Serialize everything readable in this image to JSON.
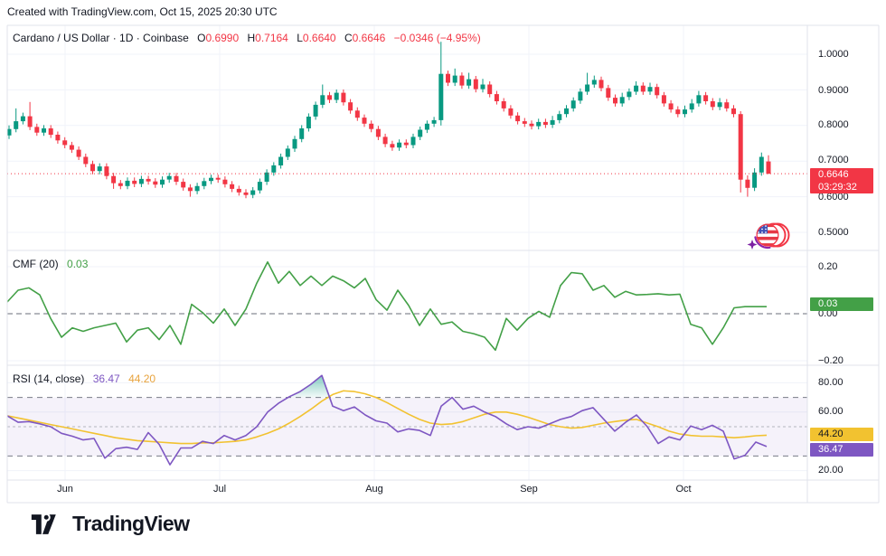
{
  "header": {
    "attribution": "Created with TradingView.com, Oct 15, 2025 20:30 UTC"
  },
  "symbol_legend": {
    "title": "Cardano / US Dollar · 1D · Coinbase",
    "o_label": "O",
    "o": "0.6990",
    "h_label": "H",
    "h": "0.7164",
    "l_label": "L",
    "l": "0.6640",
    "c_label": "C",
    "c": "0.6646",
    "change": "−0.0346 (−4.95%)"
  },
  "price_scale": {
    "ticks": [
      "1.0000",
      "0.9000",
      "0.8000",
      "0.7000",
      "0.6000",
      "0.5000"
    ],
    "badge": {
      "price": "0.6646",
      "countdown": "03:29:32"
    }
  },
  "cmf": {
    "title": "CMF (20)",
    "value": "0.03",
    "ticks": [
      "0.20",
      "0.00",
      "−0.20"
    ],
    "badge": "0.03"
  },
  "rsi": {
    "title": "RSI (14, close)",
    "rsi_value": "36.47",
    "ma_value": "44.20",
    "ticks": [
      "80.00",
      "60.00",
      "20.00"
    ],
    "rsi_badge": "36.47",
    "ma_badge": "44.20"
  },
  "time_axis": {
    "labels": [
      "Jun",
      "Jul",
      "Aug",
      "Sep",
      "Oct"
    ]
  },
  "footer": {
    "brand": "TradingView"
  },
  "colors": {
    "up": "#089981",
    "down": "#f23645",
    "cmf_line": "#43a047",
    "rsi_line": "#7e57c2",
    "rsi_ma_line": "#f2c230",
    "band_fill": "rgba(126,87,194,0.08)",
    "band_dash": "#787b86",
    "grid": "#f0f3fa",
    "frame": "#e0e3eb",
    "text": "#131722",
    "price_badge_bg": "#f23645",
    "cmf_badge_bg": "#43a047",
    "rsi_badge_bg": "#7e57c2",
    "ma_badge_bg": "#f2c230"
  },
  "chart_data": [
    {
      "type": "candlestick",
      "title": "Cardano / US Dollar",
      "timeframe": "1D",
      "exchange": "Coinbase",
      "ohlc_legend": {
        "o": 0.699,
        "h": 0.7164,
        "l": 0.664,
        "c": 0.6646,
        "change": -0.0346,
        "change_pct": -4.95
      },
      "y_ticks_values": [
        1.0,
        0.9,
        0.8,
        0.7,
        0.6,
        0.5
      ],
      "last_price": 0.6646,
      "x_labels": [
        "Jun",
        "Jul",
        "Aug",
        "Sep",
        "Oct"
      ],
      "candles": [
        [
          0.772,
          0.8,
          0.762,
          0.79
        ],
        [
          0.79,
          0.848,
          0.781,
          0.812
        ],
        [
          0.812,
          0.836,
          0.803,
          0.826
        ],
        [
          0.826,
          0.866,
          0.787,
          0.796
        ],
        [
          0.796,
          0.805,
          0.771,
          0.78
        ],
        [
          0.78,
          0.801,
          0.771,
          0.792
        ],
        [
          0.792,
          0.801,
          0.765,
          0.774
        ],
        [
          0.774,
          0.783,
          0.749,
          0.758
        ],
        [
          0.758,
          0.767,
          0.736,
          0.745
        ],
        [
          0.745,
          0.754,
          0.723,
          0.732
        ],
        [
          0.732,
          0.741,
          0.703,
          0.712
        ],
        [
          0.712,
          0.721,
          0.683,
          0.692
        ],
        [
          0.692,
          0.701,
          0.663,
          0.672
        ],
        [
          0.672,
          0.694,
          0.663,
          0.685
        ],
        [
          0.685,
          0.694,
          0.649,
          0.658
        ],
        [
          0.658,
          0.667,
          0.622,
          0.638
        ],
        [
          0.638,
          0.647,
          0.621,
          0.63
        ],
        [
          0.63,
          0.654,
          0.621,
          0.645
        ],
        [
          0.645,
          0.654,
          0.627,
          0.636
        ],
        [
          0.636,
          0.659,
          0.627,
          0.65
        ],
        [
          0.65,
          0.659,
          0.634,
          0.643
        ],
        [
          0.643,
          0.652,
          0.625,
          0.634
        ],
        [
          0.634,
          0.657,
          0.625,
          0.648
        ],
        [
          0.648,
          0.667,
          0.639,
          0.658
        ],
        [
          0.658,
          0.667,
          0.633,
          0.642
        ],
        [
          0.642,
          0.651,
          0.617,
          0.626
        ],
        [
          0.626,
          0.635,
          0.6,
          0.616
        ],
        [
          0.616,
          0.639,
          0.607,
          0.63
        ],
        [
          0.63,
          0.653,
          0.621,
          0.644
        ],
        [
          0.644,
          0.662,
          0.635,
          0.653
        ],
        [
          0.653,
          0.662,
          0.639,
          0.648
        ],
        [
          0.648,
          0.657,
          0.626,
          0.635
        ],
        [
          0.635,
          0.644,
          0.613,
          0.622
        ],
        [
          0.622,
          0.631,
          0.603,
          0.612
        ],
        [
          0.612,
          0.621,
          0.596,
          0.605
        ],
        [
          0.605,
          0.627,
          0.596,
          0.618
        ],
        [
          0.618,
          0.651,
          0.609,
          0.642
        ],
        [
          0.642,
          0.677,
          0.633,
          0.668
        ],
        [
          0.668,
          0.697,
          0.659,
          0.688
        ],
        [
          0.688,
          0.721,
          0.679,
          0.712
        ],
        [
          0.712,
          0.744,
          0.703,
          0.735
        ],
        [
          0.735,
          0.771,
          0.726,
          0.762
        ],
        [
          0.762,
          0.801,
          0.753,
          0.792
        ],
        [
          0.792,
          0.834,
          0.783,
          0.825
        ],
        [
          0.825,
          0.867,
          0.816,
          0.858
        ],
        [
          0.858,
          0.915,
          0.849,
          0.885
        ],
        [
          0.885,
          0.894,
          0.863,
          0.872
        ],
        [
          0.872,
          0.901,
          0.863,
          0.892
        ],
        [
          0.892,
          0.901,
          0.856,
          0.865
        ],
        [
          0.865,
          0.874,
          0.833,
          0.842
        ],
        [
          0.842,
          0.851,
          0.813,
          0.822
        ],
        [
          0.822,
          0.831,
          0.796,
          0.805
        ],
        [
          0.805,
          0.814,
          0.781,
          0.79
        ],
        [
          0.79,
          0.799,
          0.759,
          0.768
        ],
        [
          0.768,
          0.777,
          0.739,
          0.748
        ],
        [
          0.748,
          0.757,
          0.729,
          0.738
        ],
        [
          0.738,
          0.761,
          0.729,
          0.752
        ],
        [
          0.752,
          0.761,
          0.736,
          0.745
        ],
        [
          0.745,
          0.777,
          0.736,
          0.768
        ],
        [
          0.768,
          0.797,
          0.759,
          0.788
        ],
        [
          0.788,
          0.814,
          0.779,
          0.805
        ],
        [
          0.805,
          0.824,
          0.796,
          0.815
        ],
        [
          0.815,
          1.035,
          0.8,
          0.945
        ],
        [
          0.945,
          0.954,
          0.911,
          0.92
        ],
        [
          0.92,
          0.96,
          0.911,
          0.94
        ],
        [
          0.94,
          0.949,
          0.903,
          0.912
        ],
        [
          0.912,
          0.948,
          0.903,
          0.93
        ],
        [
          0.93,
          0.939,
          0.893,
          0.902
        ],
        [
          0.902,
          0.931,
          0.893,
          0.915
        ],
        [
          0.915,
          0.924,
          0.879,
          0.888
        ],
        [
          0.888,
          0.897,
          0.859,
          0.868
        ],
        [
          0.868,
          0.877,
          0.839,
          0.848
        ],
        [
          0.848,
          0.857,
          0.819,
          0.828
        ],
        [
          0.828,
          0.837,
          0.803,
          0.812
        ],
        [
          0.812,
          0.821,
          0.796,
          0.805
        ],
        [
          0.805,
          0.814,
          0.789,
          0.798
        ],
        [
          0.798,
          0.819,
          0.789,
          0.81
        ],
        [
          0.81,
          0.819,
          0.793,
          0.802
        ],
        [
          0.802,
          0.827,
          0.793,
          0.815
        ],
        [
          0.815,
          0.841,
          0.806,
          0.832
        ],
        [
          0.832,
          0.857,
          0.823,
          0.848
        ],
        [
          0.848,
          0.879,
          0.839,
          0.87
        ],
        [
          0.87,
          0.904,
          0.861,
          0.895
        ],
        [
          0.895,
          0.948,
          0.886,
          0.915
        ],
        [
          0.915,
          0.94,
          0.906,
          0.928
        ],
        [
          0.928,
          0.937,
          0.896,
          0.905
        ],
        [
          0.905,
          0.914,
          0.869,
          0.878
        ],
        [
          0.878,
          0.887,
          0.853,
          0.862
        ],
        [
          0.862,
          0.892,
          0.853,
          0.88
        ],
        [
          0.88,
          0.904,
          0.871,
          0.895
        ],
        [
          0.895,
          0.924,
          0.886,
          0.912
        ],
        [
          0.912,
          0.921,
          0.886,
          0.895
        ],
        [
          0.895,
          0.92,
          0.886,
          0.908
        ],
        [
          0.908,
          0.917,
          0.876,
          0.885
        ],
        [
          0.885,
          0.894,
          0.853,
          0.862
        ],
        [
          0.862,
          0.871,
          0.836,
          0.845
        ],
        [
          0.845,
          0.854,
          0.823,
          0.832
        ],
        [
          0.832,
          0.856,
          0.823,
          0.845
        ],
        [
          0.845,
          0.874,
          0.836,
          0.862
        ],
        [
          0.862,
          0.897,
          0.853,
          0.885
        ],
        [
          0.885,
          0.894,
          0.859,
          0.868
        ],
        [
          0.868,
          0.877,
          0.843,
          0.852
        ],
        [
          0.852,
          0.877,
          0.843,
          0.865
        ],
        [
          0.865,
          0.874,
          0.839,
          0.848
        ],
        [
          0.848,
          0.857,
          0.823,
          0.832
        ],
        [
          0.832,
          0.84,
          0.612,
          0.648
        ],
        [
          0.648,
          0.66,
          0.6,
          0.625
        ],
        [
          0.625,
          0.68,
          0.616,
          0.668
        ],
        [
          0.668,
          0.724,
          0.659,
          0.712
        ],
        [
          0.699,
          0.7164,
          0.664,
          0.6646
        ]
      ]
    },
    {
      "type": "line",
      "name": "CMF (20)",
      "current": 0.03,
      "y_ticks_values": [
        0.2,
        0,
        -0.2
      ],
      "zero_line": 0,
      "values": [
        0.05,
        0.1,
        0.11,
        0.08,
        -0.02,
        -0.1,
        -0.06,
        -0.075,
        -0.06,
        -0.05,
        -0.04,
        -0.12,
        -0.07,
        -0.06,
        -0.11,
        -0.05,
        -0.13,
        0.04,
        0.005,
        -0.04,
        0.02,
        -0.05,
        0.02,
        0.13,
        0.22,
        0.13,
        0.18,
        0.12,
        0.16,
        0.12,
        0.16,
        0.14,
        0.11,
        0.15,
        0.06,
        0.015,
        0.1,
        0.035,
        -0.05,
        0.02,
        -0.045,
        -0.035,
        -0.075,
        -0.085,
        -0.1,
        -0.155,
        -0.02,
        -0.07,
        -0.02,
        0.01,
        -0.015,
        0.12,
        0.175,
        0.17,
        0.1,
        0.12,
        0.07,
        0.095,
        0.08,
        0.082,
        0.085,
        0.08,
        0.083,
        -0.045,
        -0.06,
        -0.13,
        -0.06,
        0.025,
        0.03,
        0.03,
        0.03
      ]
    },
    {
      "type": "line",
      "name": "RSI (14, close)",
      "bands": {
        "upper": 70,
        "middle": 50,
        "lower": 30
      },
      "y_ticks_values": [
        80,
        60,
        20
      ],
      "series": [
        {
          "name": "RSI",
          "current": 36.47,
          "values": [
            57.5,
            53,
            53.5,
            52,
            50,
            45.5,
            43.5,
            41,
            42,
            28.5,
            35,
            36,
            34.5,
            46,
            38,
            24,
            35.5,
            35.5,
            40,
            38.5,
            44,
            41,
            44,
            50,
            60,
            66,
            70.5,
            74,
            79,
            85,
            64,
            61,
            63.5,
            58,
            54,
            52.5,
            46.5,
            48.5,
            47.5,
            44,
            64,
            70,
            62,
            64,
            60,
            57,
            52,
            48,
            50,
            49,
            52,
            55,
            57,
            61,
            63,
            55,
            47,
            53,
            58,
            50,
            38.5,
            43,
            41,
            50.5,
            48,
            51,
            47,
            28,
            30.5,
            39.5,
            36.47
          ]
        },
        {
          "name": "RSI-based MA",
          "current": 44.2,
          "values": [
            57.5,
            56,
            54.5,
            53,
            51.5,
            50,
            48.5,
            47,
            45.5,
            44,
            42.5,
            41.5,
            40.5,
            40,
            39.5,
            39,
            38.5,
            38.5,
            39,
            39,
            39.5,
            40,
            41,
            43,
            45.5,
            48.5,
            52.5,
            57,
            62,
            67.5,
            72,
            74.5,
            74,
            72.5,
            70,
            66.5,
            62.5,
            58.5,
            55,
            52.5,
            51.5,
            52,
            53.5,
            56,
            58.5,
            60,
            60,
            58.5,
            56.5,
            54,
            51.5,
            50,
            49,
            49.5,
            51,
            52.5,
            53.5,
            54.5,
            55,
            52.5,
            50,
            47,
            45,
            44,
            43.5,
            43.5,
            43,
            42.5,
            43,
            43.8,
            44.2
          ]
        }
      ]
    }
  ]
}
